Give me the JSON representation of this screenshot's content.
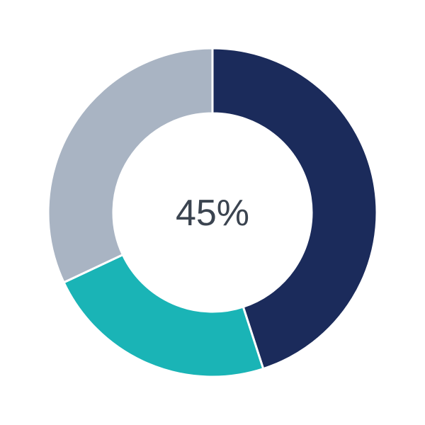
{
  "chart_data": {
    "type": "pie",
    "variant": "donut",
    "center_label": "45%",
    "values": [
      45,
      23,
      32
    ],
    "colors": [
      "#1b2b5b",
      "#1ab4b6",
      "#a9b4c3"
    ],
    "start_angle_deg": 0,
    "direction": "clockwise",
    "legend": "none"
  }
}
